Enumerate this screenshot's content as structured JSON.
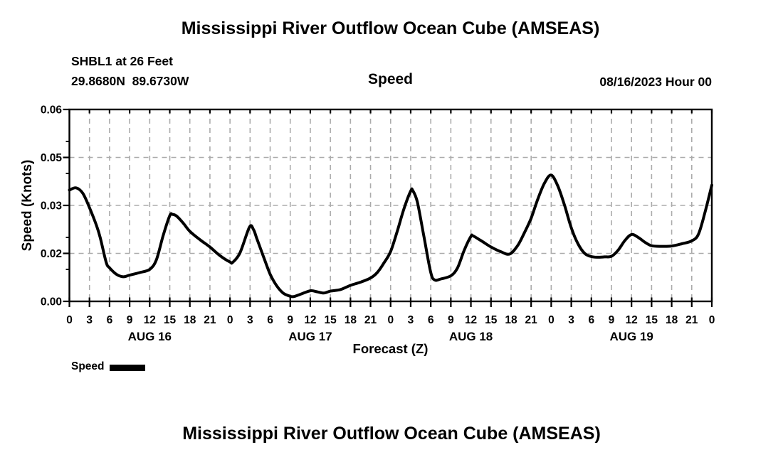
{
  "page": {
    "title": "Mississippi River Outflow Ocean Cube (AMSEAS)",
    "bottom_title": "Mississippi River Outflow Ocean Cube (AMSEAS)"
  },
  "header": {
    "station_line": "SHBL1 at 26 Feet",
    "coords_line": "29.8680N  89.6730W",
    "panel_title": "Speed",
    "run_label": "08/16/2023 Hour 00"
  },
  "legend": {
    "label": "Speed",
    "color": "#000000"
  },
  "colors": {
    "background": "#ffffff",
    "line": "#000000",
    "grid": "#ababab",
    "text": "#000000"
  },
  "chart_data": {
    "type": "line",
    "title": "Speed",
    "xlabel": "Forecast (Z)",
    "ylabel": "Speed (Knots)",
    "grid": true,
    "ylim": [
      0,
      0.06
    ],
    "yticks": [
      0,
      0.015,
      0.03,
      0.045,
      0.06
    ],
    "ytick_labels": [
      "0.00",
      "0.02",
      "0.03",
      "0.05",
      "0.06"
    ],
    "y_minor_ticks": [
      0.01,
      0.02,
      0.04,
      0.05
    ],
    "x_hours_total": 96,
    "x_tick_step_hours": 3,
    "hour_label_pattern": [
      "0",
      "3",
      "6",
      "9",
      "12",
      "15",
      "18",
      "21"
    ],
    "x_end_label": "0",
    "day_labels": [
      "AUG 16",
      "AUG 17",
      "AUG 18",
      "AUG 19"
    ],
    "series": [
      {
        "name": "Speed",
        "color": "#000000",
        "units": "Knots",
        "points": [
          [
            0,
            0.0348
          ],
          [
            1,
            0.0355
          ],
          [
            2,
            0.0338
          ],
          [
            3,
            0.0293
          ],
          [
            4,
            0.024
          ],
          [
            4.6,
            0.02
          ],
          [
            5.5,
            0.0122
          ],
          [
            6,
            0.0105
          ],
          [
            7,
            0.0085
          ],
          [
            8,
            0.0077
          ],
          [
            9,
            0.0082
          ],
          [
            10.5,
            0.009
          ],
          [
            12,
            0.01
          ],
          [
            13,
            0.013
          ],
          [
            14,
            0.0205
          ],
          [
            15,
            0.0268
          ],
          [
            15.4,
            0.0272
          ],
          [
            16,
            0.0267
          ],
          [
            17,
            0.0245
          ],
          [
            18,
            0.0219
          ],
          [
            19.5,
            0.0193
          ],
          [
            21,
            0.017
          ],
          [
            22.5,
            0.0143
          ],
          [
            24,
            0.0123
          ],
          [
            24.4,
            0.0122
          ],
          [
            25.5,
            0.0152
          ],
          [
            26.9,
            0.0232
          ],
          [
            27.5,
            0.0225
          ],
          [
            28,
            0.0197
          ],
          [
            29,
            0.014
          ],
          [
            30,
            0.0085
          ],
          [
            31,
            0.0048
          ],
          [
            32,
            0.0025
          ],
          [
            33,
            0.0016
          ],
          [
            33.5,
            0.0015
          ],
          [
            34.5,
            0.0022
          ],
          [
            36,
            0.0033
          ],
          [
            37,
            0.003
          ],
          [
            38,
            0.0026
          ],
          [
            39,
            0.0032
          ],
          [
            40.5,
            0.0037
          ],
          [
            42,
            0.005
          ],
          [
            43.5,
            0.006
          ],
          [
            45,
            0.0073
          ],
          [
            46,
            0.009
          ],
          [
            47,
            0.012
          ],
          [
            48,
            0.0156
          ],
          [
            49,
            0.022
          ],
          [
            50,
            0.029
          ],
          [
            51,
            0.0345
          ],
          [
            51.3,
            0.0347
          ],
          [
            52,
            0.031
          ],
          [
            53,
            0.02
          ],
          [
            54,
            0.009
          ],
          [
            54.6,
            0.0067
          ],
          [
            55.5,
            0.007
          ],
          [
            57,
            0.008
          ],
          [
            58,
            0.0105
          ],
          [
            59,
            0.016
          ],
          [
            60,
            0.0203
          ],
          [
            60.3,
            0.0205
          ],
          [
            61.5,
            0.019
          ],
          [
            63,
            0.017
          ],
          [
            64.5,
            0.0155
          ],
          [
            65.8,
            0.0148
          ],
          [
            67,
            0.0175
          ],
          [
            68,
            0.0215
          ],
          [
            69,
            0.026
          ],
          [
            70,
            0.032
          ],
          [
            71,
            0.037
          ],
          [
            72,
            0.0395
          ],
          [
            73,
            0.036
          ],
          [
            74,
            0.03
          ],
          [
            75,
            0.023
          ],
          [
            76,
            0.018
          ],
          [
            77,
            0.015
          ],
          [
            78,
            0.014
          ],
          [
            79,
            0.0138
          ],
          [
            80,
            0.0139
          ],
          [
            81,
            0.0141
          ],
          [
            82,
            0.016
          ],
          [
            83,
            0.019
          ],
          [
            84,
            0.0209
          ],
          [
            85,
            0.02
          ],
          [
            86,
            0.0185
          ],
          [
            87,
            0.0174
          ],
          [
            88.5,
            0.0172
          ],
          [
            90,
            0.0173
          ],
          [
            91.5,
            0.018
          ],
          [
            93,
            0.0189
          ],
          [
            94,
            0.021
          ],
          [
            95,
            0.028
          ],
          [
            96,
            0.0363
          ]
        ]
      }
    ]
  }
}
